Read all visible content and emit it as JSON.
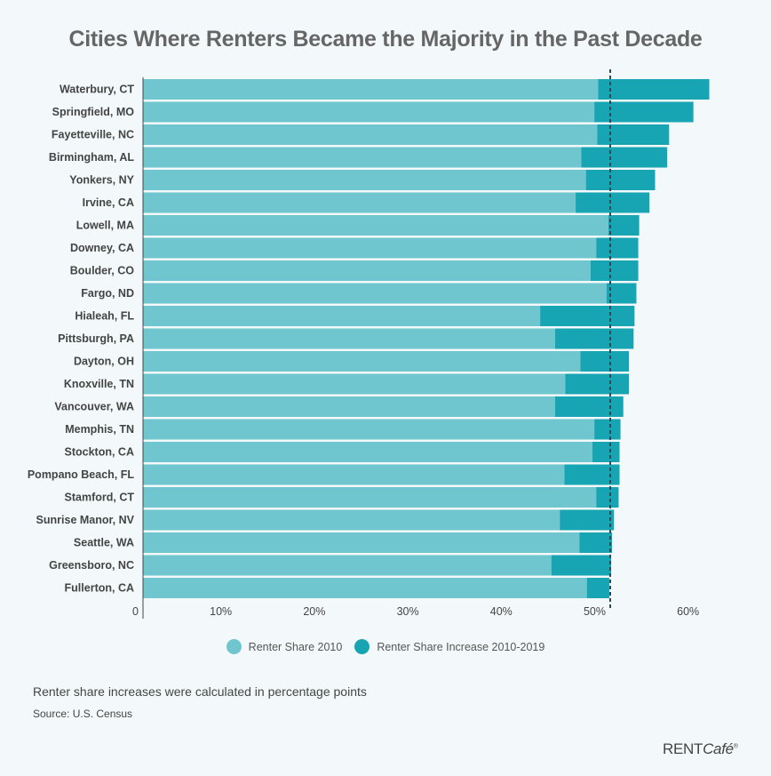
{
  "chart_data": {
    "type": "bar",
    "orientation": "horizontal",
    "stacked": true,
    "title": "Cities Where Renters Became the Majority in the Past Decade",
    "categories": [
      "Waterbury, CT",
      "Springfield, MO",
      "Fayetteville, NC",
      "Birmingham, AL",
      "Yonkers, NY",
      "Irvine, CA",
      "Lowell, MA",
      "Downey, CA",
      "Boulder, CO",
      "Fargo, ND",
      "Hialeah, FL",
      "Pittsburgh, PA",
      "Dayton, OH",
      "Knoxville, TN",
      "Vancouver, WA",
      "Memphis, TN",
      "Stockton, CA",
      "Pompano Beach, FL",
      "Stamford, CT",
      "Sunrise Manor, NV",
      "Seattle, WA",
      "Greensboro, NC",
      "Fullerton, CA"
    ],
    "series": [
      {
        "name": "Renter Share 2010",
        "color": "#6fc6cf",
        "values": [
          48.7,
          48.3,
          48.6,
          46.9,
          47.4,
          46.3,
          49.8,
          48.5,
          47.9,
          49.6,
          42.5,
          44.1,
          46.8,
          45.2,
          44.1,
          48.3,
          48.1,
          45.1,
          48.5,
          44.6,
          46.7,
          43.7,
          47.5
        ]
      },
      {
        "name": "Renter Share Increase 2010-2019",
        "color": "#17a5b3",
        "values": [
          11.9,
          10.6,
          7.7,
          9.2,
          7.4,
          7.9,
          3.3,
          4.5,
          5.1,
          3.2,
          10.1,
          8.4,
          5.2,
          6.8,
          7.3,
          2.8,
          2.9,
          5.9,
          2.4,
          5.8,
          3.5,
          6.4,
          2.4
        ]
      }
    ],
    "xticks": [
      {
        "v": 0,
        "label": "0"
      },
      {
        "v": 10,
        "label": "10%"
      },
      {
        "v": 20,
        "label": "20%"
      },
      {
        "v": 30,
        "label": "30%"
      },
      {
        "v": 40,
        "label": "40%"
      },
      {
        "v": 50,
        "label": "50%"
      },
      {
        "v": 60,
        "label": "60%"
      }
    ],
    "xlim": [
      0,
      67
    ],
    "reference_line": {
      "value": 50,
      "style": "dashed",
      "color": "#2f4a5a"
    },
    "grid": false,
    "legend_position": "bottom"
  },
  "note": "Renter share increases were calculated in percentage points",
  "source": "Source: U.S. Census",
  "logo": {
    "brand": "RENT",
    "brand_italic": "Café",
    "mark": "®"
  }
}
